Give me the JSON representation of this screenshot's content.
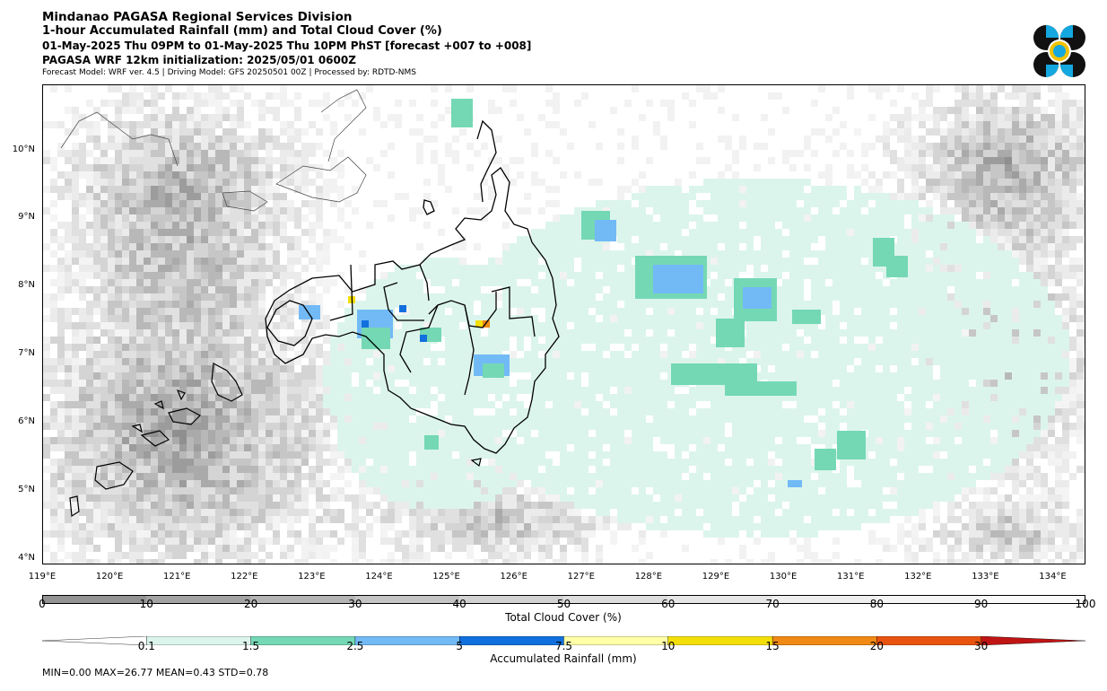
{
  "header": {
    "line1": "Mindanao PAGASA Regional Services Division",
    "line2": "1-hour Accumulated Rainfall (mm) and Total Cloud Cover (%)",
    "line3": "01-May-2025 Thu 09PM to 01-May-2025 Thu 10PM PhST [forecast +007 to +008]",
    "line4": "PAGASA WRF 12km initialization: 2025/05/01 0600Z",
    "line5": "Forecast Model: WRF ver. 4.5 | Driving Model: GFS 20250501 00Z | Processed by: RDTD-NMS"
  },
  "map": {
    "lat_labels": [
      "10°N",
      "9°N",
      "8°N",
      "7°N",
      "6°N",
      "5°N",
      "4°N"
    ],
    "lon_labels": [
      "119°E",
      "120°E",
      "121°E",
      "122°E",
      "123°E",
      "124°E",
      "125°E",
      "126°E",
      "127°E",
      "128°E",
      "129°E",
      "130°E",
      "131°E",
      "132°E",
      "133°E",
      "134°E"
    ]
  },
  "cloud_colorbar": {
    "label": "Total Cloud Cover (%)",
    "ticks": [
      "0",
      "10",
      "20",
      "30",
      "40",
      "50",
      "60",
      "70",
      "80",
      "90",
      "100"
    ],
    "colors": [
      "#939393",
      "#a3a3a3",
      "#b4b4b4",
      "#c4c4c4",
      "#d2d2d2",
      "#dddddd",
      "#e6e6e6",
      "#eeeeee",
      "#f4f4f4",
      "#f9f9f9"
    ]
  },
  "rain_colorbar": {
    "label": "Accumulated Rainfall (mm)",
    "ticks": [
      "0.1",
      "1.5",
      "2.5",
      "5",
      "7.5",
      "10",
      "15",
      "20",
      "30"
    ],
    "colors": [
      "#ffffff",
      "#dcf5ec",
      "#74d8b4",
      "#72baf6",
      "#1170dd",
      "#ffffa8",
      "#f4de08",
      "#f08a14",
      "#e85410",
      "#c11414"
    ]
  },
  "stats": "MIN=0.00   MAX=26.77   MEAN=0.43   STD=0.78"
}
